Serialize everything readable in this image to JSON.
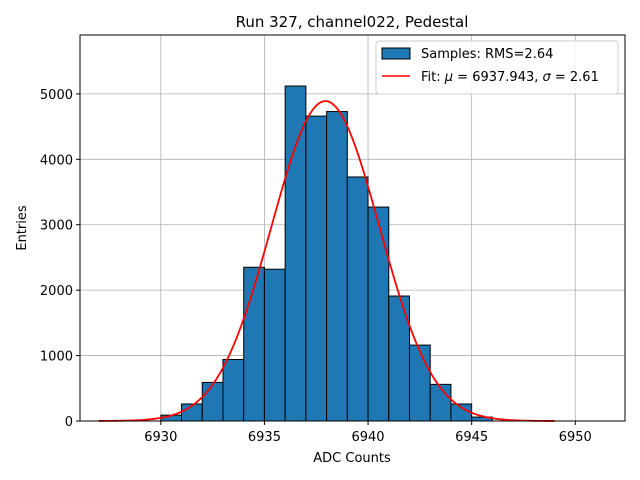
{
  "chart_data": {
    "type": "bar",
    "title": "Run 327, channel022, Pedestal",
    "xlabel": "ADC Counts",
    "ylabel": "Entries",
    "xlim": [
      6926.1,
      6952.4
    ],
    "ylim": [
      0,
      5900
    ],
    "grid": true,
    "legend_placement": "top-right",
    "x_ticks": [
      6930,
      6935,
      6940,
      6945,
      6950
    ],
    "x_tick_labels": [
      "6930",
      "6935",
      "6940",
      "6945",
      "6950"
    ],
    "y_ticks": [
      0,
      1000,
      2000,
      3000,
      4000,
      5000
    ],
    "y_tick_labels": [
      "0",
      "1000",
      "2000",
      "3000",
      "4000",
      "5000"
    ],
    "histogram": {
      "name": "Samples: RMS=2.64",
      "color": "#1f77b4",
      "bin_edges": [
        6930,
        6931,
        6932,
        6933,
        6934,
        6935,
        6936,
        6937,
        6938,
        6939,
        6940,
        6941,
        6942,
        6943,
        6944,
        6945,
        6946
      ],
      "counts": [
        90,
        260,
        590,
        940,
        2350,
        2320,
        5120,
        4660,
        4730,
        3730,
        3270,
        1910,
        1160,
        560,
        260,
        60
      ]
    },
    "fit": {
      "name_prefix": "Fit: ",
      "name_mu": "μ",
      "name_mid": " = 6937.943, ",
      "name_sigma": "σ",
      "name_suffix": " = 2.61",
      "color": "#ff0000",
      "mu": 6937.943,
      "sigma": 2.61,
      "amplitude": 4890,
      "x_range": [
        6927,
        6949
      ]
    }
  }
}
